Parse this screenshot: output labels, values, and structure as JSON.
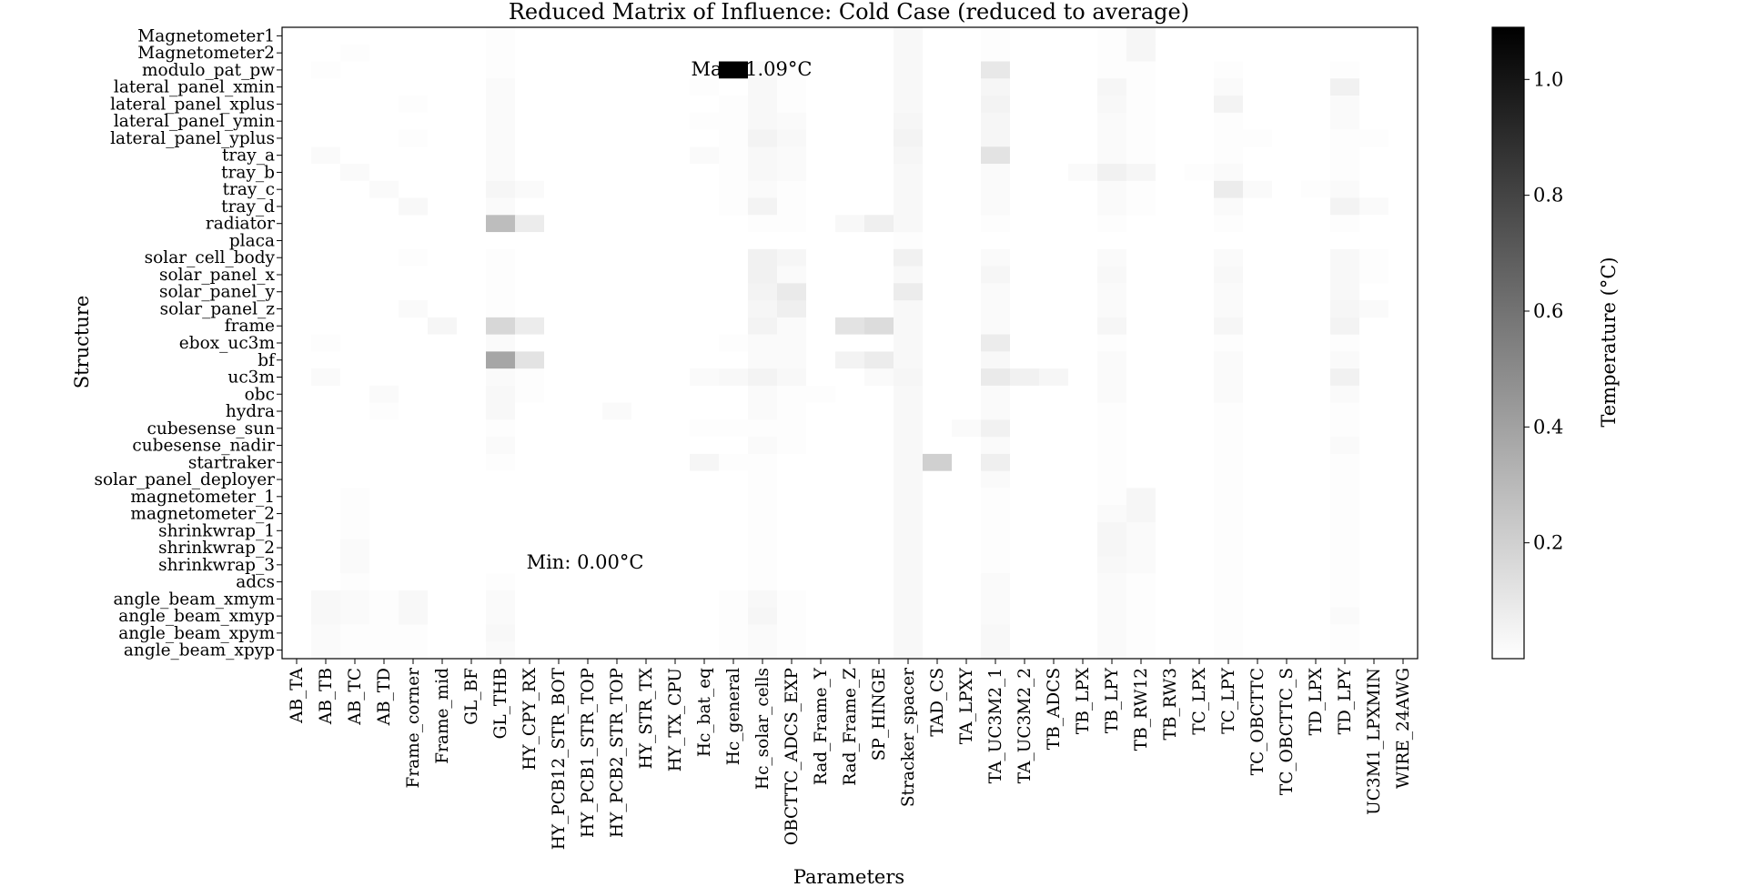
{
  "chart_data": {
    "type": "heatmap",
    "title": "Reduced Matrix of Influence: Cold Case (reduced to average)",
    "xlabel": "Parameters",
    "ylabel": "Structure",
    "colorbar_label": "Temperature (°C)",
    "colormap": "gray_r",
    "color_min_value": 0.0,
    "color_max_value": 1.09,
    "colorbar_ticks": [
      0.2,
      0.4,
      0.6,
      0.8,
      1.0
    ],
    "colorbar_tick_labels": [
      "0.2",
      "0.4",
      "0.6",
      "0.8",
      "1.0"
    ],
    "grid": false,
    "annotations": [
      {
        "text": "Max: 1.09°C",
        "color": "#ff0000"
      },
      {
        "text": "Min: 0.00°C",
        "color": "#0000ff"
      }
    ],
    "y_categories": [
      "Magnetometer1",
      "Magnetometer2",
      "modulo_pat_pw",
      "lateral_panel_xmin",
      "lateral_panel_xplus",
      "lateral_panel_ymin",
      "lateral_panel_yplus",
      "tray_a",
      "tray_b",
      "tray_c",
      "tray_d",
      "radiator",
      "placa",
      "solar_cell_body",
      "solar_panel_x",
      "solar_panel_y",
      "solar_panel_z",
      "frame",
      "ebox_uc3m",
      "bf",
      "uc3m",
      "obc",
      "hydra",
      "cubesense_sun",
      "cubesense_nadir",
      "startraker",
      "solar_panel_deployer",
      "magnetometer_1",
      "magnetometer_2",
      "shrinkwrap_1",
      "shrinkwrap_2",
      "shrinkwrap_3",
      "adcs",
      "angle_beam_xmym",
      "angle_beam_xmyp",
      "angle_beam_xpym",
      "angle_beam_xpyp"
    ],
    "x_categories": [
      "AB_TA",
      "AB_TB",
      "AB_TC",
      "AB_TD",
      "Frame_corner",
      "Frame_mid",
      "GL_BF",
      "GL_THB",
      "HY_CPY_RX",
      "HY_PCB12_STR_BOT",
      "HY_PCB1_STR_TOP",
      "HY_PCB2_STR_TOP",
      "HY_STR_TX",
      "HY_TX_CPU",
      "Hc_bat_eq",
      "Hc_general",
      "Hc_solar_cells",
      "OBCTTC_ADCS_EXP",
      "Rad_Frame_Y",
      "Rad_Frame_Z",
      "SP_HINGE",
      "Stracker_spacer",
      "TAD_CS",
      "TA_LPXY",
      "TA_UC3M2_1",
      "TA_UC3M2_2",
      "TB_ADCS",
      "TB_LPX",
      "TB_LPY",
      "TB_RW12",
      "TB_RW3",
      "TC_LPX",
      "TC_LPY",
      "TC_OBCTTC",
      "TC_OBCTTC_S",
      "TD_LPX",
      "TD_LPY",
      "UC3M1_LPXMIN",
      "WIRE_24AWG"
    ],
    "values": [
      [
        0,
        0,
        0,
        0,
        0,
        0,
        0,
        0.01,
        0,
        0,
        0,
        0,
        0,
        0,
        0,
        0,
        0,
        0,
        0,
        0,
        0,
        0.03,
        0,
        0,
        0.01,
        0,
        0,
        0,
        0.01,
        0.04,
        0,
        0,
        0,
        0,
        0,
        0,
        0,
        0,
        0
      ],
      [
        0,
        0,
        0.01,
        0,
        0,
        0,
        0,
        0.01,
        0,
        0,
        0,
        0,
        0,
        0,
        0,
        0,
        0,
        0,
        0,
        0,
        0,
        0.03,
        0,
        0,
        0.01,
        0,
        0,
        0,
        0.01,
        0.04,
        0,
        0,
        0,
        0,
        0,
        0,
        0,
        0,
        0
      ],
      [
        0,
        0.01,
        0,
        0,
        0,
        0,
        0,
        0.01,
        0,
        0,
        0,
        0,
        0,
        0,
        0,
        1.09,
        0.02,
        0.01,
        0,
        0,
        0,
        0.03,
        0,
        0,
        0.1,
        0,
        0,
        0,
        0.01,
        0.01,
        0,
        0,
        0.01,
        0,
        0,
        0,
        0.01,
        0,
        0
      ],
      [
        0,
        0,
        0,
        0,
        0,
        0,
        0,
        0.02,
        0,
        0,
        0,
        0,
        0,
        0,
        0.01,
        0,
        0.03,
        0.01,
        0,
        0,
        0,
        0.03,
        0,
        0,
        0.04,
        0,
        0,
        0,
        0.04,
        0.01,
        0,
        0,
        0.02,
        0,
        0,
        0,
        0.06,
        0,
        0
      ],
      [
        0,
        0,
        0,
        0,
        0.01,
        0,
        0,
        0.02,
        0,
        0,
        0,
        0,
        0,
        0,
        0,
        0.01,
        0.03,
        0.01,
        0,
        0,
        0,
        0.03,
        0,
        0,
        0.05,
        0,
        0,
        0,
        0.03,
        0.01,
        0,
        0,
        0.05,
        0,
        0,
        0,
        0.02,
        0,
        0
      ],
      [
        0,
        0,
        0,
        0,
        0,
        0,
        0,
        0.02,
        0,
        0,
        0,
        0,
        0,
        0,
        0.01,
        0.01,
        0.03,
        0.02,
        0,
        0,
        0,
        0.04,
        0,
        0,
        0.04,
        0,
        0,
        0,
        0.02,
        0.01,
        0,
        0,
        0.01,
        0,
        0,
        0,
        0.02,
        0,
        0
      ],
      [
        0,
        0,
        0,
        0,
        0.01,
        0,
        0,
        0.02,
        0,
        0,
        0,
        0,
        0,
        0,
        0,
        0.01,
        0.05,
        0.03,
        0,
        0,
        0,
        0.05,
        0,
        0,
        0.04,
        0,
        0,
        0,
        0.02,
        0.01,
        0,
        0,
        0.01,
        0.01,
        0,
        0,
        0.01,
        0.01,
        0
      ],
      [
        0,
        0.02,
        0,
        0,
        0,
        0,
        0,
        0.02,
        0,
        0,
        0,
        0,
        0,
        0,
        0.02,
        0.01,
        0.03,
        0.02,
        0,
        0,
        0,
        0.04,
        0,
        0,
        0.12,
        0,
        0,
        0,
        0.02,
        0.01,
        0,
        0,
        0.01,
        0,
        0,
        0,
        0.01,
        0,
        0
      ],
      [
        0,
        0,
        0.02,
        0,
        0,
        0,
        0,
        0.02,
        0,
        0,
        0,
        0,
        0,
        0,
        0,
        0.01,
        0.03,
        0.02,
        0,
        0,
        0,
        0.03,
        0,
        0,
        0.02,
        0,
        0,
        0.02,
        0.06,
        0.04,
        0,
        0.01,
        0.02,
        0,
        0,
        0,
        0.01,
        0,
        0
      ],
      [
        0,
        0,
        0,
        0.02,
        0,
        0,
        0,
        0.04,
        0.02,
        0,
        0,
        0,
        0,
        0,
        0,
        0.01,
        0.02,
        0.01,
        0,
        0,
        0,
        0.03,
        0,
        0,
        0.02,
        0,
        0,
        0,
        0.02,
        0.01,
        0,
        0,
        0.08,
        0.02,
        0,
        0.01,
        0.02,
        0,
        0
      ],
      [
        0,
        0,
        0,
        0,
        0.03,
        0,
        0,
        0.02,
        0,
        0,
        0,
        0,
        0,
        0,
        0,
        0.01,
        0.05,
        0.01,
        0,
        0,
        0,
        0.03,
        0,
        0,
        0.02,
        0,
        0,
        0,
        0.02,
        0.01,
        0,
        0,
        0.02,
        0,
        0,
        0,
        0.05,
        0.02,
        0
      ],
      [
        0,
        0,
        0,
        0,
        0,
        0,
        0,
        0.28,
        0.08,
        0,
        0,
        0,
        0,
        0,
        0,
        0,
        0.01,
        0.01,
        0,
        0.03,
        0.07,
        0.03,
        0,
        0,
        0.01,
        0,
        0,
        0,
        0.01,
        0,
        0,
        0,
        0.01,
        0,
        0,
        0,
        0.01,
        0,
        0
      ],
      [
        0,
        0,
        0,
        0,
        0,
        0,
        0,
        0,
        0,
        0,
        0,
        0,
        0,
        0,
        0,
        0,
        0,
        0,
        0,
        0,
        0,
        0.01,
        0,
        0,
        0,
        0,
        0,
        0,
        0,
        0,
        0,
        0,
        0,
        0,
        0,
        0,
        0,
        0,
        0
      ],
      [
        0,
        0,
        0,
        0,
        0.01,
        0,
        0,
        0.01,
        0,
        0,
        0,
        0,
        0,
        0,
        0,
        0,
        0.06,
        0.04,
        0,
        0,
        0,
        0.06,
        0,
        0,
        0.02,
        0,
        0,
        0,
        0.02,
        0,
        0,
        0,
        0.02,
        0,
        0,
        0,
        0.03,
        0.01,
        0
      ],
      [
        0,
        0,
        0,
        0,
        0,
        0,
        0,
        0.01,
        0,
        0,
        0,
        0,
        0,
        0,
        0,
        0,
        0.06,
        0.02,
        0,
        0,
        0,
        0.03,
        0,
        0,
        0.04,
        0,
        0,
        0,
        0.03,
        0,
        0,
        0,
        0.03,
        0,
        0,
        0,
        0.03,
        0.01,
        0
      ],
      [
        0,
        0,
        0,
        0,
        0,
        0,
        0,
        0.01,
        0,
        0,
        0,
        0,
        0,
        0,
        0,
        0,
        0.05,
        0.09,
        0,
        0,
        0,
        0.08,
        0,
        0,
        0.02,
        0,
        0,
        0,
        0.02,
        0,
        0,
        0,
        0.02,
        0,
        0,
        0,
        0.03,
        0,
        0
      ],
      [
        0,
        0,
        0,
        0,
        0.02,
        0,
        0,
        0.01,
        0,
        0,
        0,
        0,
        0,
        0,
        0,
        0,
        0.04,
        0.07,
        0,
        0,
        0,
        0.03,
        0,
        0,
        0.02,
        0,
        0,
        0,
        0.02,
        0,
        0,
        0,
        0.02,
        0,
        0,
        0,
        0.04,
        0.02,
        0
      ],
      [
        0,
        0,
        0,
        0,
        0,
        0.04,
        0,
        0.17,
        0.08,
        0,
        0,
        0,
        0,
        0,
        0,
        0,
        0.05,
        0.02,
        0,
        0.12,
        0.15,
        0.03,
        0,
        0,
        0.02,
        0,
        0,
        0,
        0.04,
        0,
        0,
        0,
        0.04,
        0,
        0,
        0,
        0.05,
        0,
        0
      ],
      [
        0,
        0.01,
        0,
        0,
        0,
        0,
        0,
        0.02,
        0,
        0,
        0,
        0,
        0,
        0,
        0,
        0.01,
        0.02,
        0.02,
        0,
        0,
        0,
        0.03,
        0,
        0,
        0.08,
        0,
        0,
        0,
        0.01,
        0,
        0,
        0,
        0.01,
        0,
        0,
        0,
        0.01,
        0,
        0
      ],
      [
        0,
        0,
        0,
        0,
        0,
        0,
        0,
        0.38,
        0.12,
        0,
        0,
        0,
        0,
        0,
        0,
        0,
        0.02,
        0.02,
        0,
        0.05,
        0.08,
        0.03,
        0,
        0,
        0.03,
        0,
        0,
        0,
        0.02,
        0,
        0,
        0,
        0.02,
        0,
        0,
        0,
        0.02,
        0,
        0
      ],
      [
        0,
        0.02,
        0,
        0,
        0,
        0,
        0,
        0.02,
        0.01,
        0,
        0,
        0,
        0,
        0,
        0.02,
        0.03,
        0.05,
        0.03,
        0,
        0,
        0.02,
        0.04,
        0,
        0,
        0.09,
        0.06,
        0.04,
        0,
        0.02,
        0,
        0,
        0,
        0.02,
        0,
        0,
        0,
        0.06,
        0,
        0
      ],
      [
        0,
        0,
        0,
        0.02,
        0,
        0,
        0,
        0.03,
        0.01,
        0,
        0,
        0,
        0,
        0,
        0,
        0,
        0.02,
        0.01,
        0.01,
        0,
        0,
        0.03,
        0,
        0,
        0.02,
        0,
        0,
        0,
        0.02,
        0,
        0,
        0,
        0.02,
        0,
        0,
        0,
        0.02,
        0,
        0
      ],
      [
        0,
        0,
        0,
        0.01,
        0,
        0,
        0,
        0.03,
        0,
        0,
        0,
        0.02,
        0,
        0,
        0,
        0,
        0.02,
        0.01,
        0,
        0,
        0,
        0.03,
        0,
        0,
        0.02,
        0,
        0,
        0,
        0.01,
        0,
        0,
        0,
        0.01,
        0,
        0,
        0,
        0.01,
        0,
        0
      ],
      [
        0,
        0,
        0,
        0,
        0,
        0,
        0,
        0.01,
        0,
        0,
        0,
        0,
        0,
        0,
        0.01,
        0.01,
        0.01,
        0.01,
        0,
        0,
        0,
        0.03,
        0,
        0.02,
        0.06,
        0,
        0,
        0,
        0.01,
        0,
        0,
        0,
        0.01,
        0,
        0,
        0,
        0.01,
        0,
        0
      ],
      [
        0,
        0,
        0,
        0,
        0,
        0,
        0,
        0.02,
        0,
        0,
        0,
        0,
        0,
        0,
        0,
        0,
        0.02,
        0.01,
        0,
        0,
        0,
        0.03,
        0,
        0,
        0.02,
        0,
        0,
        0,
        0.01,
        0,
        0,
        0,
        0.01,
        0,
        0,
        0,
        0.02,
        0,
        0
      ],
      [
        0,
        0,
        0,
        0,
        0,
        0,
        0,
        0.01,
        0,
        0,
        0,
        0,
        0,
        0,
        0.04,
        0.01,
        0.01,
        0,
        0,
        0,
        0,
        0.03,
        0.2,
        0,
        0.07,
        0,
        0,
        0,
        0.01,
        0,
        0,
        0,
        0.01,
        0,
        0,
        0,
        0.01,
        0,
        0
      ],
      [
        0,
        0,
        0,
        0,
        0,
        0,
        0,
        0,
        0,
        0,
        0,
        0,
        0,
        0,
        0,
        0,
        0.01,
        0,
        0,
        0,
        0,
        0.03,
        0,
        0,
        0.02,
        0,
        0,
        0,
        0.01,
        0,
        0,
        0,
        0.01,
        0,
        0,
        0,
        0.01,
        0,
        0
      ],
      [
        0,
        0,
        0.01,
        0,
        0,
        0,
        0,
        0,
        0,
        0,
        0,
        0,
        0,
        0,
        0,
        0,
        0.01,
        0,
        0,
        0,
        0,
        0.03,
        0,
        0,
        0.01,
        0,
        0,
        0,
        0.01,
        0.04,
        0,
        0,
        0.01,
        0,
        0,
        0,
        0.01,
        0,
        0
      ],
      [
        0,
        0,
        0.01,
        0,
        0,
        0,
        0,
        0,
        0,
        0,
        0,
        0,
        0,
        0,
        0,
        0,
        0.01,
        0,
        0,
        0,
        0,
        0.03,
        0,
        0,
        0.01,
        0,
        0,
        0,
        0.02,
        0.04,
        0,
        0,
        0.01,
        0,
        0,
        0,
        0.01,
        0,
        0
      ],
      [
        0,
        0,
        0.01,
        0,
        0,
        0,
        0,
        0,
        0,
        0,
        0,
        0,
        0,
        0,
        0,
        0,
        0.01,
        0,
        0,
        0,
        0,
        0.03,
        0,
        0,
        0.01,
        0,
        0,
        0,
        0.04,
        0.02,
        0,
        0,
        0.01,
        0,
        0,
        0,
        0.01,
        0,
        0
      ],
      [
        0,
        0,
        0.02,
        0,
        0,
        0,
        0,
        0,
        0,
        0,
        0,
        0,
        0,
        0,
        0,
        0,
        0.01,
        0,
        0,
        0,
        0,
        0.03,
        0,
        0,
        0.01,
        0,
        0,
        0,
        0.04,
        0.02,
        0,
        0,
        0.01,
        0,
        0,
        0,
        0.01,
        0,
        0
      ],
      [
        0,
        0,
        0.02,
        0,
        0,
        0,
        0,
        0,
        0,
        0,
        0,
        0,
        0,
        0,
        0,
        0,
        0.01,
        0,
        0,
        0,
        0,
        0.03,
        0,
        0,
        0.01,
        0,
        0,
        0,
        0.03,
        0.02,
        0,
        0,
        0.01,
        0,
        0,
        0,
        0.01,
        0,
        0
      ],
      [
        0,
        0,
        0.01,
        0,
        0,
        0,
        0,
        0.01,
        0,
        0,
        0,
        0,
        0,
        0,
        0,
        0,
        0.01,
        0,
        0,
        0,
        0,
        0.03,
        0,
        0,
        0.02,
        0,
        0,
        0,
        0.02,
        0.01,
        0,
        0,
        0.01,
        0,
        0,
        0,
        0.01,
        0,
        0
      ],
      [
        0,
        0.03,
        0.02,
        0.01,
        0.03,
        0,
        0,
        0.02,
        0,
        0,
        0,
        0,
        0,
        0,
        0,
        0.01,
        0.03,
        0.01,
        0,
        0,
        0,
        0.03,
        0,
        0,
        0.02,
        0,
        0,
        0,
        0.02,
        0.01,
        0,
        0,
        0.01,
        0,
        0,
        0,
        0.01,
        0,
        0
      ],
      [
        0,
        0.03,
        0.02,
        0.01,
        0.03,
        0,
        0,
        0.02,
        0,
        0,
        0,
        0,
        0,
        0,
        0,
        0.01,
        0.04,
        0.01,
        0,
        0,
        0,
        0.03,
        0,
        0,
        0.02,
        0,
        0,
        0,
        0.02,
        0.01,
        0,
        0,
        0.01,
        0,
        0,
        0,
        0.02,
        0,
        0
      ],
      [
        0,
        0.02,
        0.01,
        0.01,
        0.01,
        0,
        0,
        0.03,
        0,
        0,
        0,
        0,
        0,
        0,
        0,
        0.01,
        0.02,
        0.01,
        0,
        0,
        0,
        0.03,
        0,
        0,
        0.03,
        0,
        0,
        0,
        0.02,
        0.01,
        0,
        0,
        0.01,
        0,
        0,
        0,
        0.01,
        0,
        0
      ],
      [
        0,
        0.02,
        0.01,
        0.01,
        0.01,
        0,
        0,
        0.02,
        0,
        0,
        0,
        0,
        0,
        0,
        0,
        0.01,
        0.02,
        0.01,
        0,
        0,
        0,
        0.03,
        0,
        0,
        0.03,
        0,
        0,
        0,
        0.02,
        0.01,
        0,
        0,
        0.01,
        0,
        0,
        0,
        0.01,
        0,
        0
      ]
    ]
  }
}
